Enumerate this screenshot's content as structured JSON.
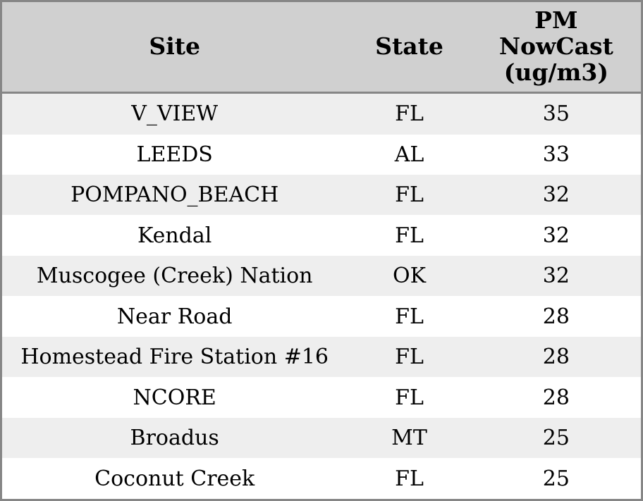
{
  "header": {
    "site_label": "Site",
    "state_label": "State",
    "pm_label": "PM NowCast (ug/m3)",
    "pm_lines": [
      "PM",
      "NowCast",
      "(ug/m3)"
    ]
  },
  "chart_data": {
    "type": "table",
    "columns": [
      "Site",
      "State",
      "PM NowCast (ug/m3)"
    ],
    "rows": [
      [
        "V_VIEW",
        "FL",
        35
      ],
      [
        "LEEDS",
        "AL",
        33
      ],
      [
        "POMPANO_BEACH",
        "FL",
        32
      ],
      [
        "Kendal",
        "FL",
        32
      ],
      [
        "Muscogee (Creek) Nation",
        "OK",
        32
      ],
      [
        "Near Road",
        "FL",
        28
      ],
      [
        "Homestead Fire Station #16",
        "FL",
        28
      ],
      [
        "NCORE",
        "FL",
        28
      ],
      [
        "Broadus",
        "MT",
        25
      ],
      [
        "Coconut Creek",
        "FL",
        25
      ]
    ],
    "units": "ug/m3",
    "layout": {
      "striped": true,
      "grid": false,
      "header_background": true
    }
  },
  "colors": {
    "frame_border": "#868686",
    "header_bg": "#d0d0d0",
    "row_stripe_bg": "#eeeeee",
    "row_bg": "#ffffff",
    "text": "#000000"
  }
}
